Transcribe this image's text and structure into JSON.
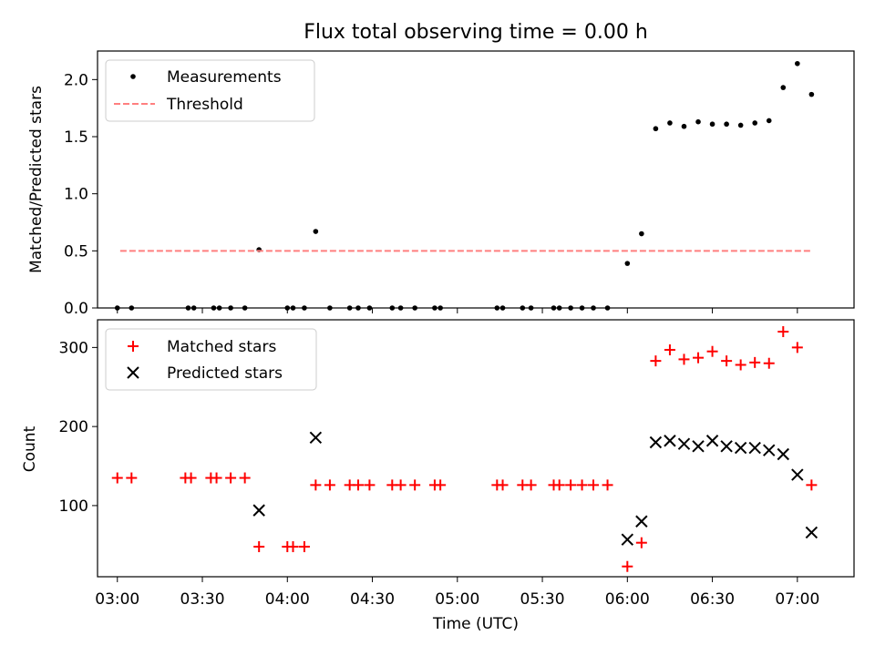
{
  "chart_data": [
    {
      "type": "scatter",
      "title": "Flux total observing time = 0.00 h",
      "ylabel": "Matched/Predicted stars",
      "xlabel": "",
      "xlim": [
        "02:53",
        "07:20"
      ],
      "ylim": [
        0,
        2.25
      ],
      "yticks": [
        0.0,
        0.5,
        1.0,
        1.5,
        2.0
      ],
      "ytick_labels": [
        "0.0",
        "0.5",
        "1.0",
        "1.5",
        "2.0"
      ],
      "legend_position": "top-left",
      "series": [
        {
          "name": "Measurements",
          "marker": "dot",
          "color": "#000000",
          "points": [
            [
              "03:00",
              0.0
            ],
            [
              "03:05",
              0.0
            ],
            [
              "03:25",
              0.0
            ],
            [
              "03:27",
              0.0
            ],
            [
              "03:34",
              0.0
            ],
            [
              "03:36",
              0.0
            ],
            [
              "03:40",
              0.0
            ],
            [
              "03:45",
              0.0
            ],
            [
              "03:50",
              0.51
            ],
            [
              "04:00",
              0.0
            ],
            [
              "04:02",
              0.0
            ],
            [
              "04:06",
              0.0
            ],
            [
              "04:10",
              0.67
            ],
            [
              "04:15",
              0.0
            ],
            [
              "04:22",
              0.0
            ],
            [
              "04:25",
              0.0
            ],
            [
              "04:29",
              0.0
            ],
            [
              "04:37",
              0.0
            ],
            [
              "04:40",
              0.0
            ],
            [
              "04:45",
              0.0
            ],
            [
              "04:52",
              0.0
            ],
            [
              "04:54",
              0.0
            ],
            [
              "05:14",
              0.0
            ],
            [
              "05:16",
              0.0
            ],
            [
              "05:23",
              0.0
            ],
            [
              "05:26",
              0.0
            ],
            [
              "05:34",
              0.0
            ],
            [
              "05:36",
              0.0
            ],
            [
              "05:40",
              0.0
            ],
            [
              "05:44",
              0.0
            ],
            [
              "05:48",
              0.0
            ],
            [
              "05:53",
              0.0
            ],
            [
              "06:00",
              0.39
            ],
            [
              "06:05",
              0.65
            ],
            [
              "06:10",
              1.57
            ],
            [
              "06:15",
              1.62
            ],
            [
              "06:20",
              1.59
            ],
            [
              "06:25",
              1.63
            ],
            [
              "06:30",
              1.61
            ],
            [
              "06:35",
              1.61
            ],
            [
              "06:40",
              1.6
            ],
            [
              "06:45",
              1.62
            ],
            [
              "06:50",
              1.64
            ],
            [
              "06:55",
              1.93
            ],
            [
              "07:00",
              2.14
            ],
            [
              "07:05",
              1.87
            ]
          ]
        },
        {
          "name": "Threshold",
          "marker": "dashed-line",
          "color": "#ff7f7f",
          "points": [
            [
              "03:01",
              0.5
            ],
            [
              "07:05",
              0.5
            ]
          ]
        }
      ]
    },
    {
      "type": "scatter",
      "title": "",
      "ylabel": "Count",
      "xlabel": "Time (UTC)",
      "xlim": [
        "02:53",
        "07:20"
      ],
      "ylim": [
        10,
        335
      ],
      "yticks": [
        100,
        200,
        300
      ],
      "ytick_labels": [
        "100",
        "200",
        "300"
      ],
      "xtick_labels": [
        "03:00",
        "03:30",
        "04:00",
        "04:30",
        "05:00",
        "05:30",
        "06:00",
        "06:30",
        "07:00"
      ],
      "legend_position": "top-left",
      "series": [
        {
          "name": "Matched stars",
          "marker": "plus",
          "color": "#ff0000",
          "points": [
            [
              "03:00",
              135
            ],
            [
              "03:05",
              135
            ],
            [
              "03:24",
              135
            ],
            [
              "03:26",
              135
            ],
            [
              "03:33",
              135
            ],
            [
              "03:35",
              135
            ],
            [
              "03:40",
              135
            ],
            [
              "03:45",
              135
            ],
            [
              "03:50",
              48
            ],
            [
              "04:00",
              48
            ],
            [
              "04:02",
              48
            ],
            [
              "04:06",
              48
            ],
            [
              "04:10",
              126
            ],
            [
              "04:15",
              126
            ],
            [
              "04:22",
              126
            ],
            [
              "04:25",
              126
            ],
            [
              "04:29",
              126
            ],
            [
              "04:37",
              126
            ],
            [
              "04:40",
              126
            ],
            [
              "04:45",
              126
            ],
            [
              "04:52",
              126
            ],
            [
              "04:54",
              126
            ],
            [
              "05:14",
              126
            ],
            [
              "05:16",
              126
            ],
            [
              "05:23",
              126
            ],
            [
              "05:26",
              126
            ],
            [
              "05:34",
              126
            ],
            [
              "05:36",
              126
            ],
            [
              "05:40",
              126
            ],
            [
              "05:44",
              126
            ],
            [
              "05:48",
              126
            ],
            [
              "05:53",
              126
            ],
            [
              "06:00",
              23
            ],
            [
              "06:05",
              53
            ],
            [
              "06:10",
              283
            ],
            [
              "06:15",
              297
            ],
            [
              "06:20",
              285
            ],
            [
              "06:25",
              287
            ],
            [
              "06:30",
              295
            ],
            [
              "06:35",
              283
            ],
            [
              "06:40",
              278
            ],
            [
              "06:45",
              281
            ],
            [
              "06:50",
              280
            ],
            [
              "06:55",
              320
            ],
            [
              "07:00",
              300
            ],
            [
              "07:05",
              126
            ]
          ]
        },
        {
          "name": "Predicted stars",
          "marker": "x",
          "color": "#000000",
          "points": [
            [
              "03:50",
              94
            ],
            [
              "04:10",
              186
            ],
            [
              "06:00",
              57
            ],
            [
              "06:05",
              80
            ],
            [
              "06:10",
              180
            ],
            [
              "06:15",
              182
            ],
            [
              "06:20",
              178
            ],
            [
              "06:25",
              175
            ],
            [
              "06:30",
              182
            ],
            [
              "06:35",
              175
            ],
            [
              "06:40",
              173
            ],
            [
              "06:45",
              173
            ],
            [
              "06:50",
              170
            ],
            [
              "06:55",
              165
            ],
            [
              "07:00",
              139
            ],
            [
              "07:05",
              66
            ]
          ]
        }
      ]
    }
  ]
}
